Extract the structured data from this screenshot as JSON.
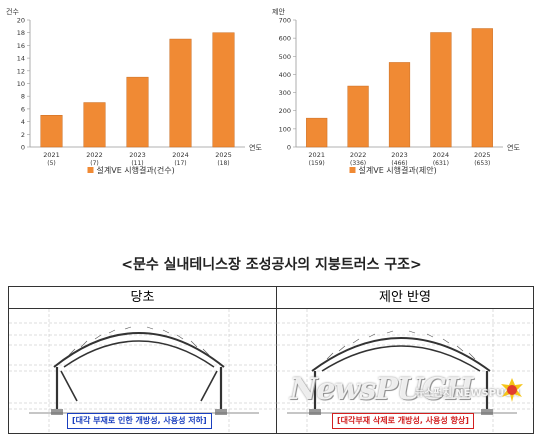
{
  "chart_data": [
    {
      "type": "bar",
      "ylabel": "건수",
      "xlabel": "연도",
      "ylim": [
        0,
        20
      ],
      "yticks": [
        0,
        2,
        4,
        6,
        8,
        10,
        12,
        14,
        16,
        18,
        20
      ],
      "categories": [
        "2021",
        "2022",
        "2023",
        "2024",
        "2025"
      ],
      "category_sub": [
        "(5)",
        "(7)",
        "(11)",
        "(17)",
        "(18)"
      ],
      "series": [
        {
          "name": "설계VE 시행결과(건수)",
          "values": [
            5,
            7,
            11,
            17,
            18
          ]
        }
      ],
      "color": "#f08a34",
      "legend_position": "bottom"
    },
    {
      "type": "bar",
      "ylabel": "제안",
      "xlabel": "연도",
      "ylim": [
        0,
        700
      ],
      "yticks": [
        0,
        100,
        200,
        300,
        400,
        500,
        600,
        700
      ],
      "categories": [
        "2021",
        "2022",
        "2023",
        "2024",
        "2025"
      ],
      "category_sub": [
        "(159)",
        "(336)",
        "(466)",
        "(631)",
        "(653)"
      ],
      "series": [
        {
          "name": "설계VE 시행결과(제안)",
          "values": [
            159,
            336,
            466,
            631,
            653
          ]
        }
      ],
      "color": "#f08a34",
      "legend_position": "bottom"
    }
  ],
  "caption": "<문수 실내테니스장 조성공사의 지붕트러스 구조>",
  "compare": {
    "before_label": "당초",
    "after_label": "제안 반영",
    "before_note": "[대각 부재로 인한 개방성, 사용성 저하]",
    "after_note": "[대각부재 삭제로 개방성, 사용성 향상]"
  },
  "watermark": {
    "text": "NewsPUCH",
    "small": "뉴스펀치 NEWSPUCH"
  }
}
